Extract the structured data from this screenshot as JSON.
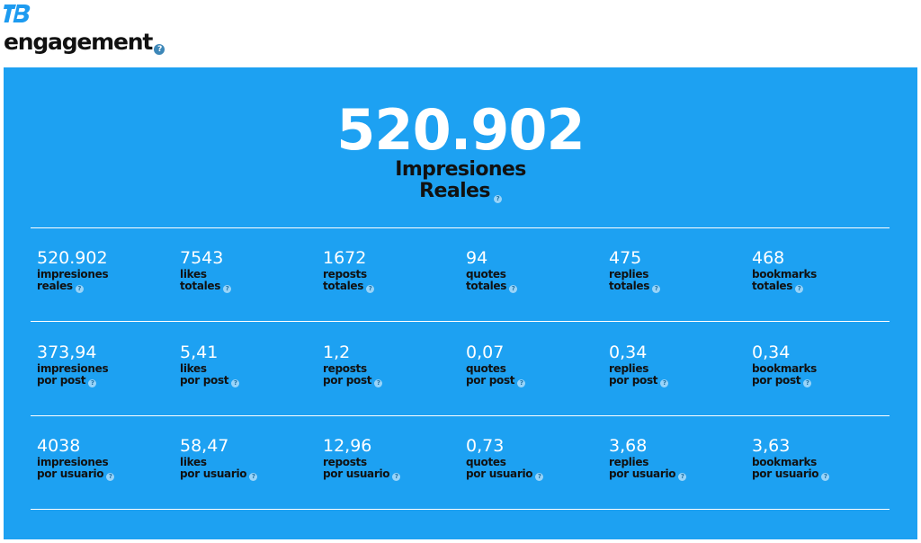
{
  "header": {
    "logo_text": "TB",
    "title": "engagement",
    "help_glyph": "?"
  },
  "colors": {
    "panel": "#1da1f2",
    "value_text": "#ffffff",
    "label_text": "#111111"
  },
  "hero": {
    "value": "520.902",
    "label_line1": "Impresiones",
    "label_line2": "Reales"
  },
  "rows": [
    {
      "stats": [
        {
          "value": "520.902",
          "line1": "impresiones",
          "line2": "reales"
        },
        {
          "value": "7543",
          "line1": "likes",
          "line2": "totales"
        },
        {
          "value": "1672",
          "line1": "reposts",
          "line2": "totales"
        },
        {
          "value": "94",
          "line1": "quotes",
          "line2": "totales"
        },
        {
          "value": "475",
          "line1": "replies",
          "line2": "totales"
        },
        {
          "value": "468",
          "line1": "bookmarks",
          "line2": "totales"
        }
      ]
    },
    {
      "stats": [
        {
          "value": "373,94",
          "line1": "impresiones",
          "line2": "por post"
        },
        {
          "value": "5,41",
          "line1": "likes",
          "line2": "por post"
        },
        {
          "value": "1,2",
          "line1": "reposts",
          "line2": "por post"
        },
        {
          "value": "0,07",
          "line1": "quotes",
          "line2": "por post"
        },
        {
          "value": "0,34",
          "line1": "replies",
          "line2": "por post"
        },
        {
          "value": "0,34",
          "line1": "bookmarks",
          "line2": "por post"
        }
      ]
    },
    {
      "stats": [
        {
          "value": "4038",
          "line1": "impresiones",
          "line2": "por usuario"
        },
        {
          "value": "58,47",
          "line1": "likes",
          "line2": "por usuario"
        },
        {
          "value": "12,96",
          "line1": "reposts",
          "line2": "por usuario"
        },
        {
          "value": "0,73",
          "line1": "quotes",
          "line2": "por usuario"
        },
        {
          "value": "3,68",
          "line1": "replies",
          "line2": "por usuario"
        },
        {
          "value": "3,63",
          "line1": "bookmarks",
          "line2": "por usuario"
        }
      ]
    }
  ]
}
